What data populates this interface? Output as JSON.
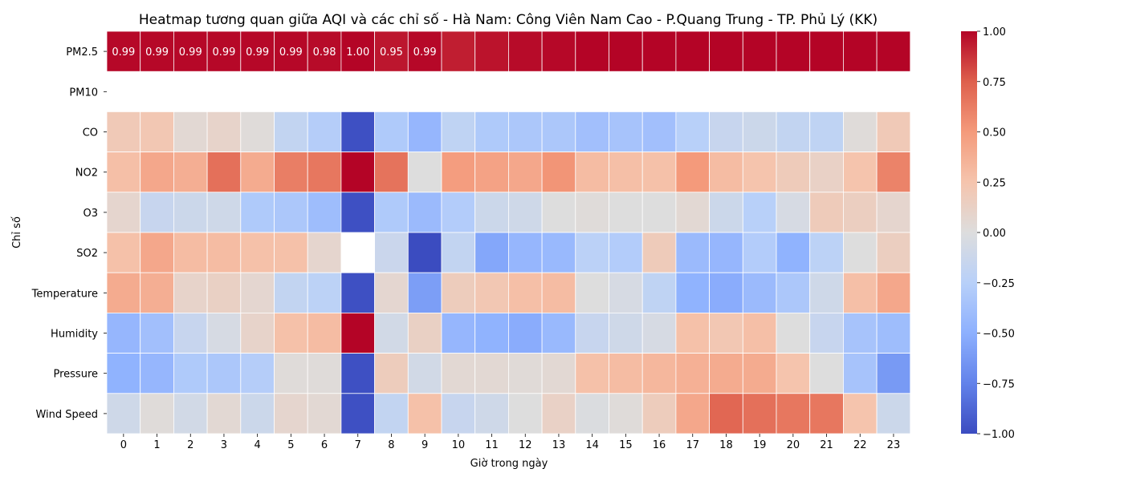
{
  "chart_data": {
    "type": "heatmap",
    "title": "Heatmap tương quan giữa AQI và các chỉ số - Hà Nam: Công Viên Nam Cao - P.Quang Trung - TP. Phủ Lý (KK)",
    "xlabel": "Giờ trong ngày",
    "ylabel": "Chỉ số",
    "x_categories": [
      "0",
      "1",
      "2",
      "3",
      "4",
      "5",
      "6",
      "7",
      "8",
      "9",
      "10",
      "11",
      "12",
      "13",
      "14",
      "15",
      "16",
      "17",
      "18",
      "19",
      "20",
      "21",
      "22",
      "23"
    ],
    "y_categories": [
      "PM2.5",
      "PM10",
      "CO",
      "NO2",
      "O3",
      "SO2",
      "Temperature",
      "Humidity",
      "Pressure",
      "Wind Speed"
    ],
    "values": [
      [
        0.99,
        0.99,
        0.99,
        0.99,
        0.99,
        0.99,
        0.98,
        1.0,
        0.95,
        0.99,
        0.93,
        0.96,
        0.98,
        0.99,
        1.0,
        1.0,
        1.0,
        1.0,
        1.0,
        1.0,
        1.0,
        1.0,
        1.0,
        1.0
      ],
      [
        null,
        null,
        null,
        null,
        null,
        null,
        null,
        null,
        null,
        null,
        null,
        null,
        null,
        null,
        null,
        null,
        null,
        null,
        null,
        null,
        null,
        null,
        null,
        null
      ],
      [
        0.2,
        0.22,
        0.05,
        0.1,
        0.02,
        -0.18,
        -0.27,
        -0.98,
        -0.3,
        -0.45,
        -0.2,
        -0.3,
        -0.32,
        -0.32,
        -0.38,
        -0.35,
        -0.38,
        -0.25,
        -0.15,
        -0.12,
        -0.18,
        -0.2,
        0.02,
        0.2
      ],
      [
        0.28,
        0.42,
        0.38,
        0.68,
        0.4,
        0.62,
        0.65,
        1.0,
        0.67,
        0.0,
        0.48,
        0.45,
        0.42,
        0.52,
        0.3,
        0.28,
        0.27,
        0.5,
        0.3,
        0.25,
        0.18,
        0.12,
        0.25,
        0.6
      ],
      [
        0.08,
        -0.15,
        -0.12,
        -0.1,
        -0.3,
        -0.32,
        -0.4,
        -0.98,
        -0.3,
        -0.42,
        -0.28,
        -0.12,
        -0.1,
        0.0,
        0.02,
        0.0,
        0.0,
        0.05,
        -0.12,
        -0.25,
        -0.05,
        0.18,
        0.15,
        0.08
      ],
      [
        0.27,
        0.42,
        0.3,
        0.3,
        0.27,
        0.27,
        0.08,
        null,
        -0.13,
        -1.0,
        -0.18,
        -0.55,
        -0.45,
        -0.43,
        -0.23,
        -0.28,
        0.18,
        -0.42,
        -0.45,
        -0.28,
        -0.48,
        -0.22,
        0.0,
        0.15
      ],
      [
        0.4,
        0.38,
        0.1,
        0.13,
        0.07,
        -0.18,
        -0.22,
        -0.98,
        0.07,
        -0.6,
        0.17,
        0.22,
        0.28,
        0.3,
        0.0,
        -0.05,
        -0.2,
        -0.48,
        -0.52,
        -0.42,
        -0.32,
        -0.1,
        0.28,
        0.42
      ],
      [
        -0.45,
        -0.38,
        -0.15,
        -0.05,
        0.1,
        0.27,
        0.3,
        1.0,
        -0.08,
        0.13,
        -0.45,
        -0.48,
        -0.52,
        -0.43,
        -0.15,
        -0.1,
        -0.05,
        0.27,
        0.22,
        0.28,
        0.0,
        -0.15,
        -0.35,
        -0.4
      ],
      [
        -0.48,
        -0.45,
        -0.3,
        -0.32,
        -0.27,
        0.02,
        0.02,
        -0.98,
        0.17,
        -0.08,
        0.05,
        0.05,
        0.03,
        0.05,
        0.27,
        0.3,
        0.33,
        0.37,
        0.4,
        0.4,
        0.25,
        0.0,
        -0.35,
        -0.62
      ],
      [
        -0.1,
        0.02,
        -0.08,
        0.05,
        -0.12,
        0.08,
        0.05,
        -0.98,
        -0.18,
        0.27,
        -0.15,
        -0.1,
        0.0,
        0.12,
        -0.02,
        0.02,
        0.17,
        0.42,
        0.72,
        0.68,
        0.65,
        0.65,
        0.25,
        -0.12
      ]
    ],
    "value_labels": [
      [
        "0.99",
        "0.99",
        "0.99",
        "0.99",
        "0.99",
        "0.99",
        "0.98",
        "1.00",
        "0.95",
        "0.99"
      ]
    ],
    "colorbar": {
      "colormap": "coolwarm",
      "range": [
        -1.0,
        1.0
      ],
      "ticks": [
        "1.00",
        "0.75",
        "0.50",
        "0.25",
        "0.00",
        "−0.25",
        "−0.50",
        "−0.75",
        "−1.00"
      ]
    }
  }
}
